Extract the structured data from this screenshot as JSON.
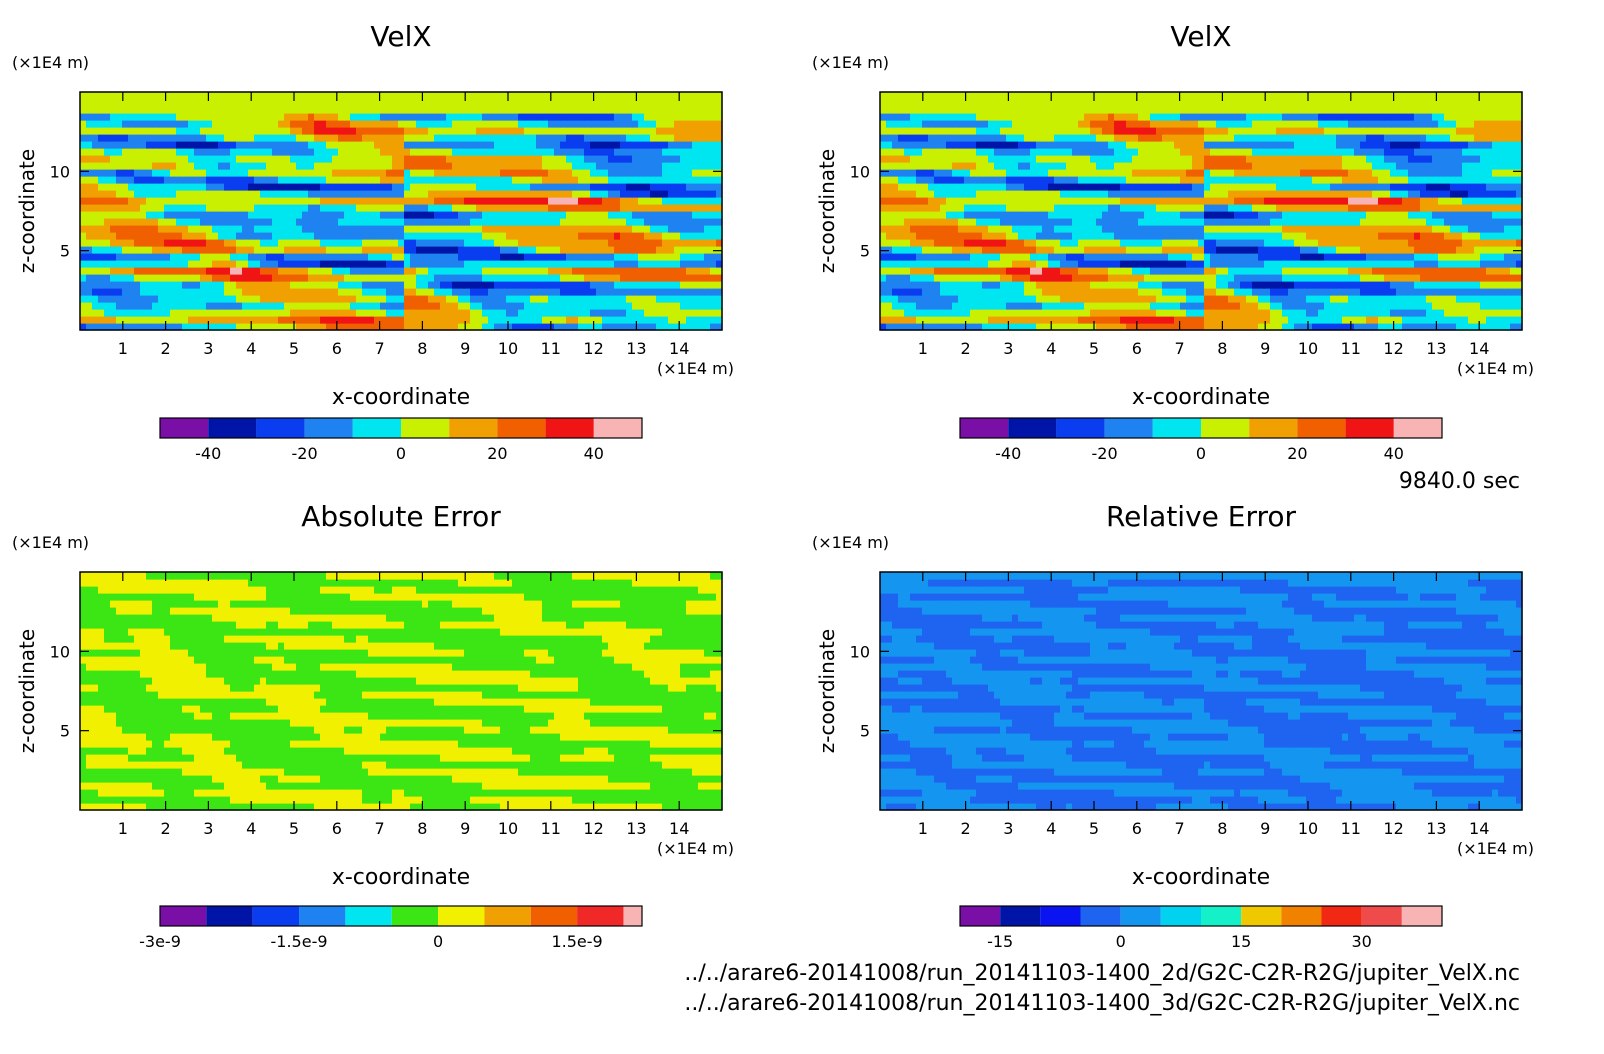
{
  "time_label": "9840.0 sec",
  "files": [
    "../../arare6-20141008/run_20141103-1400_2d/G2C-C2R-R2G/jupiter_VelX.nc",
    "../../arare6-20141008/run_20141103-1400_3d/G2C-C2R-R2G/jupiter_VelX.nc"
  ],
  "chart_data": [
    {
      "type": "heatmap",
      "title": "VelX",
      "xlabel": "x-coordinate",
      "ylabel": "z-coordinate",
      "x_unit": "(×1E4 m)",
      "y_unit": "(×1E4 m)",
      "xlim": [
        0,
        15
      ],
      "ylim": [
        0,
        15
      ],
      "x_ticks": [
        1,
        2,
        3,
        4,
        5,
        6,
        7,
        8,
        9,
        10,
        11,
        12,
        13,
        14
      ],
      "y_ticks": [
        5,
        10
      ],
      "colorbar": {
        "levels": [
          -50,
          -40,
          -30,
          -20,
          -10,
          0,
          10,
          20,
          30,
          40,
          50
        ],
        "colors": [
          "#7a0fa8",
          "#0014a8",
          "#0a3cf0",
          "#1e82f0",
          "#00e6f0",
          "#c8f000",
          "#f0a000",
          "#f06000",
          "#f01414",
          "#f8b4b4"
        ],
        "tick_values": [
          -40,
          -20,
          0,
          20,
          40
        ],
        "tick_labels": [
          "-40",
          "-20",
          "0",
          "20",
          "40"
        ]
      }
    },
    {
      "type": "heatmap",
      "title": "VelX",
      "xlabel": "x-coordinate",
      "ylabel": "z-coordinate",
      "x_unit": "(×1E4 m)",
      "y_unit": "(×1E4 m)",
      "xlim": [
        0,
        15
      ],
      "ylim": [
        0,
        15
      ],
      "x_ticks": [
        1,
        2,
        3,
        4,
        5,
        6,
        7,
        8,
        9,
        10,
        11,
        12,
        13,
        14
      ],
      "y_ticks": [
        5,
        10
      ],
      "colorbar": {
        "levels": [
          -50,
          -40,
          -30,
          -20,
          -10,
          0,
          10,
          20,
          30,
          40,
          50
        ],
        "colors": [
          "#7a0fa8",
          "#0014a8",
          "#0a3cf0",
          "#1e82f0",
          "#00e6f0",
          "#c8f000",
          "#f0a000",
          "#f06000",
          "#f01414",
          "#f8b4b4"
        ],
        "tick_values": [
          -40,
          -20,
          0,
          20,
          40
        ],
        "tick_labels": [
          "-40",
          "-20",
          "0",
          "20",
          "40"
        ]
      }
    },
    {
      "type": "heatmap",
      "title": "Absolute Error",
      "xlabel": "x-coordinate",
      "ylabel": "z-coordinate",
      "x_unit": "(×1E4 m)",
      "y_unit": "(×1E4 m)",
      "xlim": [
        0,
        15
      ],
      "ylim": [
        0,
        15
      ],
      "x_ticks": [
        1,
        2,
        3,
        4,
        5,
        6,
        7,
        8,
        9,
        10,
        11,
        12,
        13,
        14
      ],
      "y_ticks": [
        5,
        10
      ],
      "colorbar": {
        "levels": [
          -3e-09,
          -2.5e-09,
          -2e-09,
          -1.5e-09,
          -1e-09,
          -5e-10,
          0,
          5e-10,
          1e-09,
          1.5e-09,
          2e-09,
          2.2e-09
        ],
        "colors": [
          "#7a0fa8",
          "#0014a8",
          "#0a3cf0",
          "#1e82f0",
          "#00e6f0",
          "#3ce614",
          "#f0f000",
          "#f0a000",
          "#f06000",
          "#f02828",
          "#f8b4b4"
        ],
        "tick_values": [
          -3e-09,
          -1.5e-09,
          0,
          1.5e-09
        ],
        "tick_labels": [
          "-3e-9",
          "-1.5e-9",
          "0",
          "1.5e-9"
        ]
      }
    },
    {
      "type": "heatmap",
      "title": "Relative Error",
      "xlabel": "x-coordinate",
      "ylabel": "z-coordinate",
      "x_unit": "(×1E4 m)",
      "y_unit": "(×1E4 m)",
      "xlim": [
        0,
        15
      ],
      "ylim": [
        0,
        15
      ],
      "x_ticks": [
        1,
        2,
        3,
        4,
        5,
        6,
        7,
        8,
        9,
        10,
        11,
        12,
        13,
        14
      ],
      "y_ticks": [
        5,
        10
      ],
      "colorbar": {
        "levels": [
          -20,
          -15,
          -10,
          -5,
          0,
          5,
          10,
          15,
          20,
          25,
          30,
          35,
          40
        ],
        "colors": [
          "#7a0fa8",
          "#0014a8",
          "#0a14f0",
          "#1e64f0",
          "#1496f0",
          "#00d2f0",
          "#14f0c8",
          "#f0c800",
          "#f08200",
          "#f02814",
          "#f04b4b",
          "#f8b4b4"
        ],
        "tick_values": [
          -15,
          0,
          15,
          30
        ],
        "tick_labels": [
          "-15",
          "0",
          "15",
          "30"
        ]
      }
    }
  ]
}
